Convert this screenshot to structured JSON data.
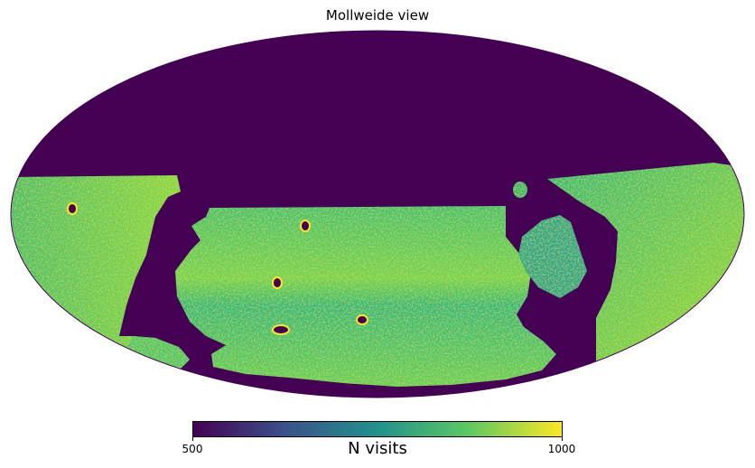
{
  "title": "Mollweide view",
  "projection": "Mollweide",
  "colormap": {
    "name": "viridis",
    "stops": [
      "#440154",
      "#3b528b",
      "#21918c",
      "#5ec962",
      "#fde725"
    ],
    "min_label": "500",
    "max_label": "1000",
    "label": "N visits",
    "range": [
      500,
      1000
    ]
  },
  "colors": {
    "unobserved": "#440154",
    "survey_base": "#3fb56e",
    "survey_high": "#b8de29",
    "survey_mid": "#2a9d8a",
    "deep_field_rim": "#fde725"
  },
  "deep_fields": [
    {
      "lon": -170,
      "lat": 3,
      "note": "deep drilling field"
    },
    {
      "lon": -20,
      "lat": -5,
      "note": "deep drilling field"
    },
    {
      "lon": -25,
      "lat": -24,
      "note": "deep drilling field"
    },
    {
      "lon": -22,
      "lat": -42,
      "note": "deep drilling field"
    },
    {
      "lon": 20,
      "lat": -37,
      "note": "deep drilling field"
    }
  ]
}
